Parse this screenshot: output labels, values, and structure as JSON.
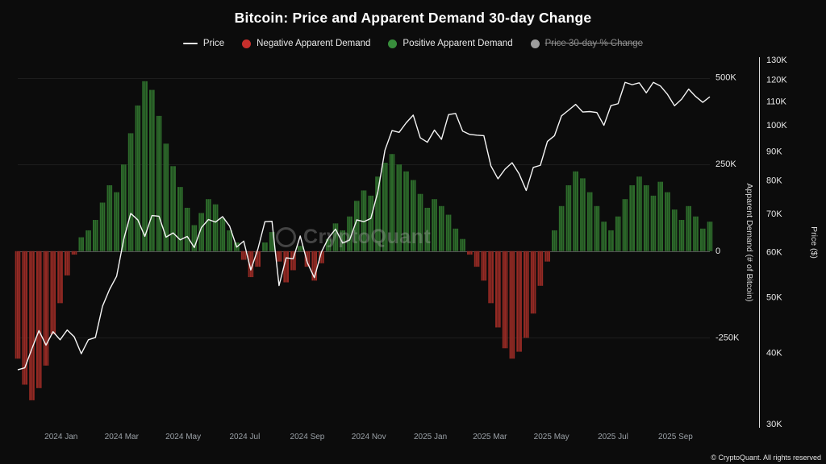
{
  "header": {
    "title": "Bitcoin: Price and Apparent Demand 30-day Change"
  },
  "legend": {
    "items": [
      {
        "label": "Price",
        "type": "line",
        "color": "#f5f5f5",
        "enabled": true
      },
      {
        "label": "Negative Apparent Demand",
        "type": "dot",
        "color": "#c62f2c",
        "enabled": true
      },
      {
        "label": "Positive Apparent Demand",
        "type": "dot",
        "color": "#388e3c",
        "enabled": true
      },
      {
        "label": "Price 30-day % Change",
        "type": "dot",
        "color": "#9e9e9e",
        "enabled": false
      }
    ]
  },
  "watermark": {
    "text": "CryptoQuant"
  },
  "footer": {
    "copyright": "© CryptoQuant. All rights reserved"
  },
  "chart_data": {
    "type": "mixed",
    "title": "Bitcoin: Price and Apparent Demand 30-day Change",
    "background_color": "#0c0c0c",
    "x": {
      "unit": "week",
      "start": "2023-11-19",
      "step_days": 7,
      "ticks": [
        {
          "label": "2024 Jan",
          "pos": 6.14
        },
        {
          "label": "2024 Mar",
          "pos": 14.71
        },
        {
          "label": "2024 May",
          "pos": 23.43
        },
        {
          "label": "2024 Jul",
          "pos": 32.14
        },
        {
          "label": "2024 Sep",
          "pos": 41.0
        },
        {
          "label": "2024 Nov",
          "pos": 49.71
        },
        {
          "label": "2025 Jan",
          "pos": 58.43
        },
        {
          "label": "2025 Mar",
          "pos": 66.86
        },
        {
          "label": "2025 May",
          "pos": 75.57
        },
        {
          "label": "2025 Jul",
          "pos": 84.29
        },
        {
          "label": "2025 Sep",
          "pos": 93.14
        }
      ]
    },
    "axes": {
      "demand": {
        "title": "Apparent Demand (# of Bitcoin)",
        "side": "right-inner",
        "scale": "linear",
        "unit": "thousand BTC",
        "min": -500,
        "max": 550,
        "ticks": [
          {
            "v": 500,
            "label": "500K"
          },
          {
            "v": 250,
            "label": "250K"
          },
          {
            "v": 0,
            "label": "0"
          },
          {
            "v": -250,
            "label": "-250K"
          }
        ]
      },
      "price": {
        "title": "Price ($)",
        "side": "right-outer",
        "scale": "log",
        "unit": "thousand USD",
        "min": 30,
        "max": 130,
        "ticks": [
          {
            "v": 130,
            "label": "130K"
          },
          {
            "v": 120,
            "label": "120K"
          },
          {
            "v": 110,
            "label": "110K"
          },
          {
            "v": 100,
            "label": "100K"
          },
          {
            "v": 90,
            "label": "90K"
          },
          {
            "v": 80,
            "label": "80K"
          },
          {
            "v": 70,
            "label": "70K"
          },
          {
            "v": 60,
            "label": "60K"
          },
          {
            "v": 50,
            "label": "50K"
          },
          {
            "v": 40,
            "label": "40K"
          },
          {
            "v": 30,
            "label": "30K"
          }
        ]
      }
    },
    "series": [
      {
        "name": "Apparent Demand 30-day Change",
        "type": "bar",
        "axis": "demand",
        "positive_color": "#2d6b2b",
        "negative_color": "#952a24",
        "values": [
          -310,
          -385,
          -430,
          -395,
          -330,
          -240,
          -150,
          -70,
          -10,
          40,
          60,
          90,
          140,
          190,
          170,
          250,
          340,
          420,
          490,
          465,
          390,
          310,
          245,
          185,
          125,
          75,
          110,
          150,
          135,
          95,
          60,
          25,
          -25,
          -75,
          -45,
          25,
          55,
          -30,
          -90,
          -55,
          15,
          -45,
          -85,
          -35,
          35,
          80,
          60,
          100,
          145,
          175,
          160,
          215,
          255,
          280,
          250,
          230,
          205,
          165,
          125,
          150,
          130,
          105,
          65,
          35,
          -10,
          -45,
          -85,
          -150,
          -220,
          -280,
          -310,
          -290,
          -250,
          -180,
          -100,
          -30,
          60,
          130,
          190,
          230,
          210,
          170,
          130,
          85,
          60,
          100,
          150,
          190,
          215,
          190,
          160,
          200,
          170,
          120,
          90,
          130,
          100,
          65,
          85
        ]
      },
      {
        "name": "Price",
        "type": "line",
        "axis": "price",
        "color": "#f5f5f5",
        "values": [
          37.4,
          37.7,
          40.7,
          43.8,
          41.3,
          43.6,
          42.2,
          43.9,
          42.7,
          39.9,
          42.2,
          42.6,
          48.3,
          51.7,
          54.5,
          63.2,
          70.2,
          68.4,
          64.0,
          69.6,
          69.4,
          63.8,
          64.9,
          63.1,
          64.0,
          61.2,
          66.3,
          68.5,
          67.8,
          69.3,
          66.7,
          61.3,
          62.8,
          55.9,
          60.8,
          67.9,
          68.0,
          52.5,
          58.7,
          58.5,
          64.1,
          57.6,
          54.2,
          60.1,
          63.6,
          65.9,
          62.3,
          63.1,
          68.4,
          67.9,
          68.8,
          76.7,
          90.6,
          98.0,
          97.3,
          101.1,
          104.3,
          95.2,
          93.5,
          98.2,
          94.6,
          104.5,
          105.0,
          97.8,
          96.5,
          96.2,
          96.0,
          85.0,
          80.7,
          83.9,
          86.1,
          82.3,
          77.0,
          84.5,
          85.2,
          93.8,
          96.0,
          104.0,
          106.4,
          108.9,
          105.6,
          105.8,
          105.4,
          100.1,
          108.4,
          109.2,
          119.0,
          117.9,
          118.8,
          114.1,
          119.0,
          117.3,
          113.4,
          108.3,
          111.2,
          115.8,
          112.4,
          109.8,
          112.3
        ]
      }
    ]
  }
}
